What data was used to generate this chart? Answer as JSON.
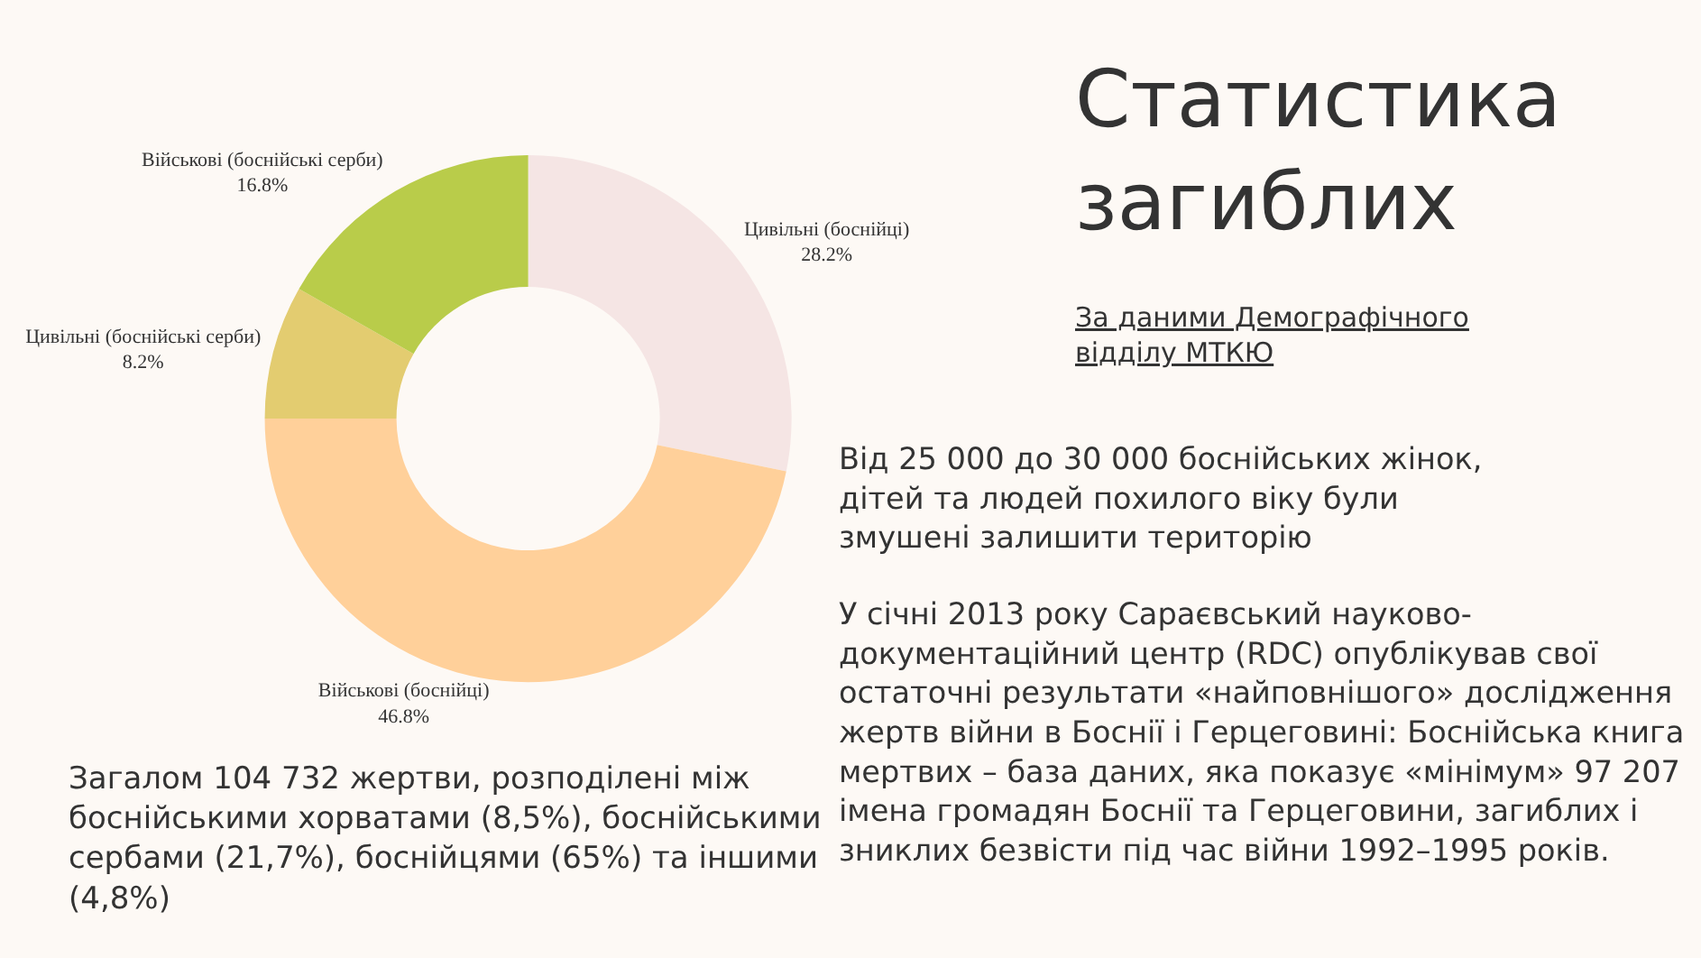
{
  "chart_data": {
    "type": "donut",
    "title": "Статистика\nзагиблих",
    "subtitle": "За даними Демографічного\nвідділу МТКЮ",
    "categories": [
      "Цивільні (боснійці)",
      "Військові (боснійці)",
      "Цивільні (боснійські серби)",
      "Військові (боснійські серби)"
    ],
    "values": [
      28.2,
      46.8,
      8.2,
      16.8
    ],
    "value_labels": [
      "28.2%",
      "46.8%",
      "8.2%",
      "16.8%"
    ],
    "colors": [
      "#f5e5e4",
      "#ffd09a",
      "#e3cc70",
      "#b9cc4a"
    ],
    "legend": false,
    "annotations": [
      "Від 25 000 до 30 000 боснійських жінок,\nдітей та людей похилого віку були\nзмушені залишити територію",
      "У січні 2013 року Сараєвський науково-\nдокументаційний центр (RDC) опублікував свої\nостаточні результати «найповнішого» дослідження\nжертв війни в Боснії і Герцеговині: Боснійська книга\nмертвих – база даних, яка показує «мінімум» 97 207\nімена громадян Боснії та Герцеговини, загиблих і\nзниклих безвісти під час війни 1992–1995 років.",
      "Загалом 104 732 жертви, розподілені між\nбоснійськими хорватами (8,5%), боснійськими\nсербами (21,7%), боснійцями (65%) та іншими\n(4,8%)"
    ]
  }
}
